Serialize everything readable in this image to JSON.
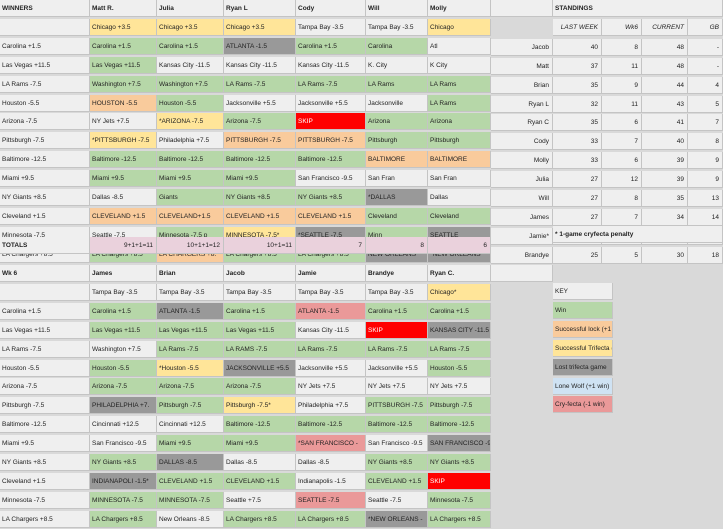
{
  "winners_header": [
    "WINNERS",
    "Matt R.",
    "Julia",
    "Ryan L",
    "Cody",
    "Will",
    "Molly"
  ],
  "winners_rows": [
    {
      "label": "",
      "cells": [
        [
          "Chicago +3.5",
          "y"
        ],
        [
          "Chicago +3.5",
          "y"
        ],
        [
          "Chicago +3.5",
          "y"
        ],
        [
          "Tampa Bay -3.5",
          "w"
        ],
        [
          "Tampa Bay -3.5",
          "w"
        ],
        [
          "Chicago",
          "y"
        ]
      ]
    },
    {
      "label": "Carolina +1.5",
      "cells": [
        [
          "Carolina +1.5",
          "g"
        ],
        [
          "Carolina +1.5",
          "g"
        ],
        [
          "ATLANTA -1.5",
          "dg"
        ],
        [
          "Carolina +1.5",
          "g"
        ],
        [
          "Carolina",
          "g"
        ],
        [
          "Atl",
          "w"
        ]
      ]
    },
    {
      "label": "Las Vegas +11.5",
      "cells": [
        [
          "Las Vegas +11.5",
          "g"
        ],
        [
          "Kansas City -11.5",
          "w"
        ],
        [
          "Kansas City -11.5",
          "w"
        ],
        [
          "Kansas City -11.5",
          "w"
        ],
        [
          "K. City",
          "w"
        ],
        [
          "K City",
          "w"
        ]
      ]
    },
    {
      "label": "LA Rams -7.5",
      "cells": [
        [
          "Washington +7.5",
          "g"
        ],
        [
          "Washington +7.5",
          "g"
        ],
        [
          "LA Rams -7.5",
          "g"
        ],
        [
          "LA Rams -7.5",
          "g"
        ],
        [
          "LA Rams",
          "g"
        ],
        [
          "LA Rams",
          "g"
        ]
      ]
    },
    {
      "label": "Houston -5.5",
      "cells": [
        [
          "HOUSTON -5.5",
          "o"
        ],
        [
          "Houston -5.5",
          "g"
        ],
        [
          "Jacksonville +5.5",
          "w"
        ],
        [
          "Jacksonville +5.5",
          "w"
        ],
        [
          "Jacksonville",
          "w"
        ],
        [
          "LA Rams",
          "g"
        ]
      ]
    },
    {
      "label": "Arizona -7.5",
      "cells": [
        [
          "NY Jets +7.5",
          "w"
        ],
        [
          "*ARIZONA -7.5",
          "y"
        ],
        [
          "Arizona -7.5",
          "g"
        ],
        [
          "SKIP",
          "r"
        ],
        [
          "Arizona",
          "g"
        ],
        [
          "Arizona",
          "g"
        ]
      ]
    },
    {
      "label": "Pittsburgh -7.5",
      "cells": [
        [
          "*PITTSBURGH -7.5",
          "y"
        ],
        [
          "Philadelphia +7.5",
          "w"
        ],
        [
          "PITTSBURGH -7.5",
          "o"
        ],
        [
          "PITTSBURGH -7.5",
          "o"
        ],
        [
          "Pittsburgh",
          "g"
        ],
        [
          "Pittsburgh",
          "g"
        ]
      ]
    },
    {
      "label": "Baltimore -12.5",
      "cells": [
        [
          "Baltimore -12.5",
          "g"
        ],
        [
          "Baltimore -12.5",
          "g"
        ],
        [
          "Baltimore -12.5",
          "g"
        ],
        [
          "Baltimore -12.5",
          "g"
        ],
        [
          "BALTIMORE",
          "o"
        ],
        [
          "BALTIMORE",
          "o"
        ]
      ]
    },
    {
      "label": "Miami +9.5",
      "cells": [
        [
          "Miami +9.5",
          "g"
        ],
        [
          "Miami +9.5",
          "g"
        ],
        [
          "Miami +9.5",
          "g"
        ],
        [
          "San Francisco -9.5",
          "w"
        ],
        [
          "San Fran",
          "w"
        ],
        [
          "San Fran",
          "w"
        ]
      ]
    },
    {
      "label": "NY Giants +8.5",
      "cells": [
        [
          "Dallas -8.5",
          "w"
        ],
        [
          "Giants",
          "g"
        ],
        [
          "NY Giants +8.5",
          "g"
        ],
        [
          "NY Giants +8.5",
          "g"
        ],
        [
          "*DALLAS",
          "dg"
        ],
        [
          "Dallas",
          "w"
        ]
      ]
    },
    {
      "label": "Cleveland +1.5",
      "cells": [
        [
          "CLEVELAND +1.5",
          "o"
        ],
        [
          "CLEVELAND+1.5",
          "o"
        ],
        [
          "CLEVELAND +1.5",
          "o"
        ],
        [
          "CLEVELAND +1.5",
          "o"
        ],
        [
          "Cleveland",
          "g"
        ],
        [
          "Cleveland",
          "g"
        ]
      ]
    },
    {
      "label": "Minnesota -7.5",
      "cells": [
        [
          "Seattle -7.5",
          "w"
        ],
        [
          "Minnesota -7.5 p",
          "g"
        ],
        [
          "MINNESOTA -7.5*",
          "y"
        ],
        [
          "*SEATTLE -7.5",
          "dg"
        ],
        [
          "Minn",
          "g"
        ],
        [
          "SEATTLE",
          "dg"
        ]
      ]
    },
    {
      "label": "LA Chargers +8.5",
      "cells": [
        [
          "LA Chargers +8.5",
          "g"
        ],
        [
          "LA CHARGERS +8.",
          "o"
        ],
        [
          "LA Chargers +8.5",
          "g"
        ],
        [
          "LA Chargers +8.5",
          "g"
        ],
        [
          "NEW ORLEANS",
          "dg"
        ],
        [
          "*NEW ORLEANS",
          "dg"
        ]
      ]
    }
  ],
  "totals_label": "TOTALS",
  "totals": [
    "9+1+1=11",
    "10+1+1=12",
    "10+1=11",
    "7",
    "8",
    "6"
  ],
  "wk6_header": [
    "Wk 6",
    "James",
    "Brian",
    "Jacob",
    "Jamie",
    "Brandye",
    "Ryan C."
  ],
  "wk6_rows": [
    {
      "label": "",
      "cells": [
        [
          "Tampa Bay -3.5",
          "w"
        ],
        [
          "Tampa Bay -3.5",
          "w"
        ],
        [
          "Tampa Bay -3.5",
          "w"
        ],
        [
          "Tampa Bay -3.5",
          "w"
        ],
        [
          "Tampa Bay -3.5",
          "w"
        ],
        [
          "Chicago*",
          "y"
        ]
      ]
    },
    {
      "label": "Carolina +1.5",
      "cells": [
        [
          "Carolina +1.5",
          "g"
        ],
        [
          "ATLANTA -1.5",
          "dg"
        ],
        [
          "Carolina +1.5",
          "g"
        ],
        [
          "ATLANTA -1.5",
          "p"
        ],
        [
          "Carolina +1.5",
          "g"
        ],
        [
          "Carolina +1.5",
          "g"
        ]
      ]
    },
    {
      "label": "Las Vegas +11.5",
      "cells": [
        [
          "Las Vegas +11.5",
          "g"
        ],
        [
          "Las Vegas +11.5",
          "g"
        ],
        [
          "Las Vegas +11.5",
          "g"
        ],
        [
          "Kansas City -11.5",
          "w"
        ],
        [
          "SKIP",
          "r"
        ],
        [
          "KANSAS CITY -11.5",
          "dg"
        ]
      ]
    },
    {
      "label": "LA Rams -7.5",
      "cells": [
        [
          "Washington +7.5",
          "w"
        ],
        [
          "LA Rams -7.5",
          "g"
        ],
        [
          "LA RAMS -7.5",
          "g"
        ],
        [
          "LA Rams -7.5",
          "g"
        ],
        [
          "LA Rams -7.5",
          "g"
        ],
        [
          "LA Rams -7.5",
          "g"
        ]
      ]
    },
    {
      "label": "Houston -5.5",
      "cells": [
        [
          "Houston -5.5",
          "g"
        ],
        [
          "*Houston -5.5",
          "y"
        ],
        [
          "JACKSONVILLE +5.5",
          "dg"
        ],
        [
          "Jacksonville +5.5",
          "w"
        ],
        [
          "Jacksonville +5.5",
          "w"
        ],
        [
          "Houston -5.5",
          "g"
        ]
      ]
    },
    {
      "label": "Arizona -7.5",
      "cells": [
        [
          "Arizona -7.5",
          "g"
        ],
        [
          "Arizona -7.5",
          "g"
        ],
        [
          "Arizona -7.5",
          "g"
        ],
        [
          "NY Jets +7.5",
          "w"
        ],
        [
          "NY Jets +7.5",
          "w"
        ],
        [
          "NY Jets +7.5",
          "w"
        ]
      ]
    },
    {
      "label": "Pittsburgh -7.5",
      "cells": [
        [
          "PHILADELPHIA +7.",
          "dg"
        ],
        [
          "Pittsburgh -7.5",
          "g"
        ],
        [
          "Pittsburgh -7.5*",
          "y"
        ],
        [
          "Philadelphia +7.5",
          "w"
        ],
        [
          "PITTSBURGH -7.5",
          "g"
        ],
        [
          "Pittsburgh -7.5",
          "g"
        ]
      ]
    },
    {
      "label": "Baltimore -12.5",
      "cells": [
        [
          "Cincinnati +12.5",
          "w"
        ],
        [
          "Cincinnati +12.5",
          "w"
        ],
        [
          "Baltimore -12.5",
          "g"
        ],
        [
          "Baltimore -12.5",
          "g"
        ],
        [
          "Baltimore -12.5",
          "g"
        ],
        [
          "Baltimore -12.5",
          "g"
        ]
      ]
    },
    {
      "label": "Miami +9.5",
      "cells": [
        [
          "San Francisco -9.5",
          "w"
        ],
        [
          "Miami +9.5",
          "g"
        ],
        [
          "Miami +9.5",
          "g"
        ],
        [
          "*SAN FRANCISCO -",
          "p"
        ],
        [
          "San Francisco -9.5",
          "w"
        ],
        [
          "SAN FRANCISCO -9.",
          "dg"
        ]
      ]
    },
    {
      "label": "NY Giants +8.5",
      "cells": [
        [
          "NY Giants +8.5",
          "g"
        ],
        [
          "DALLAS -8.5",
          "dg"
        ],
        [
          "Dallas -8.5",
          "w"
        ],
        [
          "Dallas -8.5",
          "w"
        ],
        [
          "NY Giants +8.5",
          "g"
        ],
        [
          "NY Giants +8.5",
          "g"
        ]
      ]
    },
    {
      "label": "Cleveland +1.5",
      "cells": [
        [
          "INDIANAPOLI -1.5*",
          "dg"
        ],
        [
          "CLEVELAND +1.5",
          "g"
        ],
        [
          "CLEVELAND +1.5",
          "g"
        ],
        [
          "Indianapolis -1.5",
          "w"
        ],
        [
          "CLEVELAND +1.5",
          "g"
        ],
        [
          "SKIP",
          "r"
        ]
      ]
    },
    {
      "label": "Minnesota -7.5",
      "cells": [
        [
          "MINNESOTA -7.5",
          "g"
        ],
        [
          "MINNESOTA -7.5",
          "g"
        ],
        [
          "Seattle +7.5",
          "w"
        ],
        [
          "SEATTLE -7.5",
          "p"
        ],
        [
          "Seattle -7.5",
          "w"
        ],
        [
          "Minnesota -7.5",
          "g"
        ]
      ]
    },
    {
      "label": "LA Chargers +8.5",
      "cells": [
        [
          "LA Chargers +8.5",
          "g"
        ],
        [
          "New Orleans -8.5",
          "w"
        ],
        [
          "LA Chargers +8.5",
          "g"
        ],
        [
          "LA Chargers +8.5",
          "g"
        ],
        [
          "*NEW ORLEANS -",
          "dg"
        ],
        [
          "LA Chargers +8.5",
          "g"
        ]
      ]
    }
  ],
  "standings": {
    "title": "STANDINGS",
    "cols": [
      "LAST WEEK",
      "Wk6",
      "CURRENT",
      "GB"
    ],
    "rows": [
      [
        "Jacob",
        "40",
        "8",
        "48",
        "-"
      ],
      [
        "Matt",
        "37",
        "11",
        "48",
        "-"
      ],
      [
        "Brian",
        "35",
        "9",
        "44",
        "4"
      ],
      [
        "Ryan L",
        "32",
        "11",
        "43",
        "5"
      ],
      [
        "Ryan C",
        "35",
        "6",
        "41",
        "7"
      ],
      [
        "Cody",
        "33",
        "7",
        "40",
        "8"
      ],
      [
        "Molly",
        "33",
        "6",
        "39",
        "9"
      ],
      [
        "Julia",
        "27",
        "12",
        "39",
        "9"
      ],
      [
        "Will",
        "27",
        "8",
        "35",
        "13"
      ],
      [
        "James",
        "27",
        "7",
        "34",
        "14"
      ],
      [
        "Jamie*",
        "31",
        "2",
        "33",
        "15"
      ],
      [
        "Brandye",
        "25",
        "5",
        "30",
        "18"
      ]
    ],
    "note": "* 1-game cryfecta penalty"
  },
  "key": {
    "title": "KEY",
    "items": [
      [
        "Win",
        "g"
      ],
      [
        "Successful lock (+1 win)",
        "o"
      ],
      [
        "Successful Trifecta (+1 win)",
        "y"
      ],
      [
        "Lost trifecta game",
        "dg"
      ],
      [
        "Lone Wolf (+1 win)",
        "lb"
      ],
      [
        "Cry-fecta (-1 win)",
        "p"
      ]
    ]
  }
}
